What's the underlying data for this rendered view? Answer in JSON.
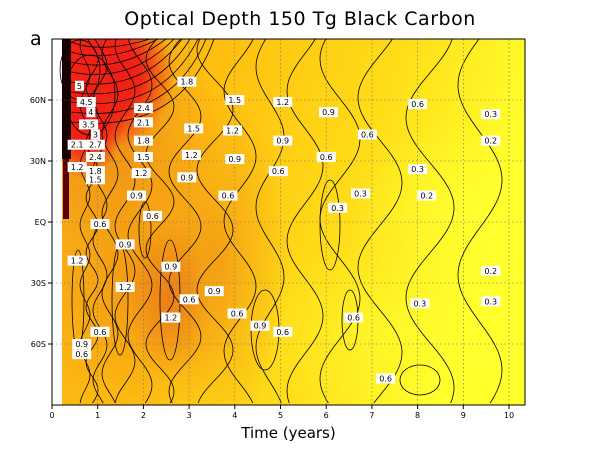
{
  "panel_label": "a",
  "chart_data": {
    "type": "heatmap",
    "title": "Optical Depth 150 Tg Black Carbon",
    "xlabel": "Time (years)",
    "ylabel": "",
    "xlim": [
      0,
      10.35
    ],
    "ylim": [
      -90,
      90
    ],
    "x_ticks": [
      0,
      1,
      2,
      3,
      4,
      5,
      6,
      7,
      8,
      9,
      10
    ],
    "x_tick_labels": [
      "0",
      "1",
      "2",
      "3",
      "4",
      "5",
      "6",
      "7",
      "8",
      "9",
      "10"
    ],
    "y_ticks": [
      60,
      30,
      0,
      -30,
      -60
    ],
    "y_tick_labels": [
      "60N",
      "30N",
      "EQ",
      "30S",
      "60S"
    ],
    "grid": true,
    "colormap": [
      "#ffff1c",
      "#ffc800",
      "#f39018",
      "#ee1c1c",
      "#8a0000"
    ],
    "contour_levels": [
      0.2,
      0.3,
      0.6,
      0.9,
      1.2,
      1.5,
      1.8,
      2.1,
      2.4,
      2.7,
      3,
      3.5,
      4,
      4.5,
      5
    ],
    "contour_labels": [
      {
        "x": 0.6,
        "y": 67,
        "text": "5"
      },
      {
        "x": 0.75,
        "y": 59,
        "text": "4.5"
      },
      {
        "x": 0.85,
        "y": 54,
        "text": "4"
      },
      {
        "x": 0.8,
        "y": 48,
        "text": "3.5"
      },
      {
        "x": 0.95,
        "y": 43,
        "text": "3"
      },
      {
        "x": 0.55,
        "y": 38,
        "text": "2.1"
      },
      {
        "x": 0.95,
        "y": 38,
        "text": "2.7"
      },
      {
        "x": 0.95,
        "y": 32,
        "text": "2.4"
      },
      {
        "x": 0.55,
        "y": 27,
        "text": "1.2"
      },
      {
        "x": 0.95,
        "y": 25,
        "text": "1.8"
      },
      {
        "x": 0.95,
        "y": 21,
        "text": "1.5"
      },
      {
        "x": 2.95,
        "y": 69,
        "text": "1.8"
      },
      {
        "x": 2.0,
        "y": 56,
        "text": "2.4"
      },
      {
        "x": 2.0,
        "y": 49,
        "text": "2.1"
      },
      {
        "x": 2.0,
        "y": 40,
        "text": "1.8"
      },
      {
        "x": 2.0,
        "y": 32,
        "text": "1.5"
      },
      {
        "x": 1.95,
        "y": 24,
        "text": "1.2"
      },
      {
        "x": 1.85,
        "y": 13,
        "text": "0.9"
      },
      {
        "x": 3.1,
        "y": 46,
        "text": "1.5"
      },
      {
        "x": 3.05,
        "y": 33,
        "text": "1.2"
      },
      {
        "x": 2.95,
        "y": 22,
        "text": "0.9"
      },
      {
        "x": 4.0,
        "y": 60,
        "text": "1.5"
      },
      {
        "x": 3.95,
        "y": 45,
        "text": "1.2"
      },
      {
        "x": 4.0,
        "y": 31,
        "text": "0.9"
      },
      {
        "x": 3.85,
        "y": 13,
        "text": "0.6"
      },
      {
        "x": 5.05,
        "y": 59,
        "text": "1.2"
      },
      {
        "x": 5.05,
        "y": 40,
        "text": "0.9"
      },
      {
        "x": 4.95,
        "y": 25,
        "text": "0.6"
      },
      {
        "x": 6.05,
        "y": 54,
        "text": "0.9"
      },
      {
        "x": 6.0,
        "y": 32,
        "text": "0.6"
      },
      {
        "x": 6.9,
        "y": 43,
        "text": "0.6"
      },
      {
        "x": 8.0,
        "y": 58,
        "text": "0.6"
      },
      {
        "x": 8.0,
        "y": 26,
        "text": "0.3"
      },
      {
        "x": 6.75,
        "y": 14,
        "text": "0.3"
      },
      {
        "x": 8.2,
        "y": 13,
        "text": "0.2"
      },
      {
        "x": 9.6,
        "y": 53,
        "text": "0.3"
      },
      {
        "x": 9.6,
        "y": 40,
        "text": "0.2"
      },
      {
        "x": 6.25,
        "y": 7,
        "text": "0.3"
      },
      {
        "x": 1.05,
        "y": -1,
        "text": "0.6"
      },
      {
        "x": 2.2,
        "y": 3,
        "text": "0.6"
      },
      {
        "x": 0.55,
        "y": -19,
        "text": "1.2"
      },
      {
        "x": 1.6,
        "y": -11,
        "text": "0.9"
      },
      {
        "x": 2.6,
        "y": -22,
        "text": "0.9"
      },
      {
        "x": 1.6,
        "y": -32,
        "text": "1.2"
      },
      {
        "x": 3.0,
        "y": -38,
        "text": "0.6"
      },
      {
        "x": 3.55,
        "y": -34,
        "text": "0.9"
      },
      {
        "x": 2.6,
        "y": -47,
        "text": "1.2"
      },
      {
        "x": 4.05,
        "y": -45,
        "text": "0.6"
      },
      {
        "x": 4.55,
        "y": -51,
        "text": "0.9"
      },
      {
        "x": 5.05,
        "y": -54,
        "text": "0.6"
      },
      {
        "x": 6.6,
        "y": -47,
        "text": "0.6"
      },
      {
        "x": 1.05,
        "y": -54,
        "text": "0.6"
      },
      {
        "x": 0.65,
        "y": -60,
        "text": "0.9"
      },
      {
        "x": 0.65,
        "y": -65,
        "text": "0.6"
      },
      {
        "x": 7.3,
        "y": -77,
        "text": "0.6"
      },
      {
        "x": 8.05,
        "y": -40,
        "text": "0.3"
      },
      {
        "x": 9.6,
        "y": -24,
        "text": "0.2"
      },
      {
        "x": 9.6,
        "y": -39,
        "text": "0.3"
      }
    ]
  }
}
